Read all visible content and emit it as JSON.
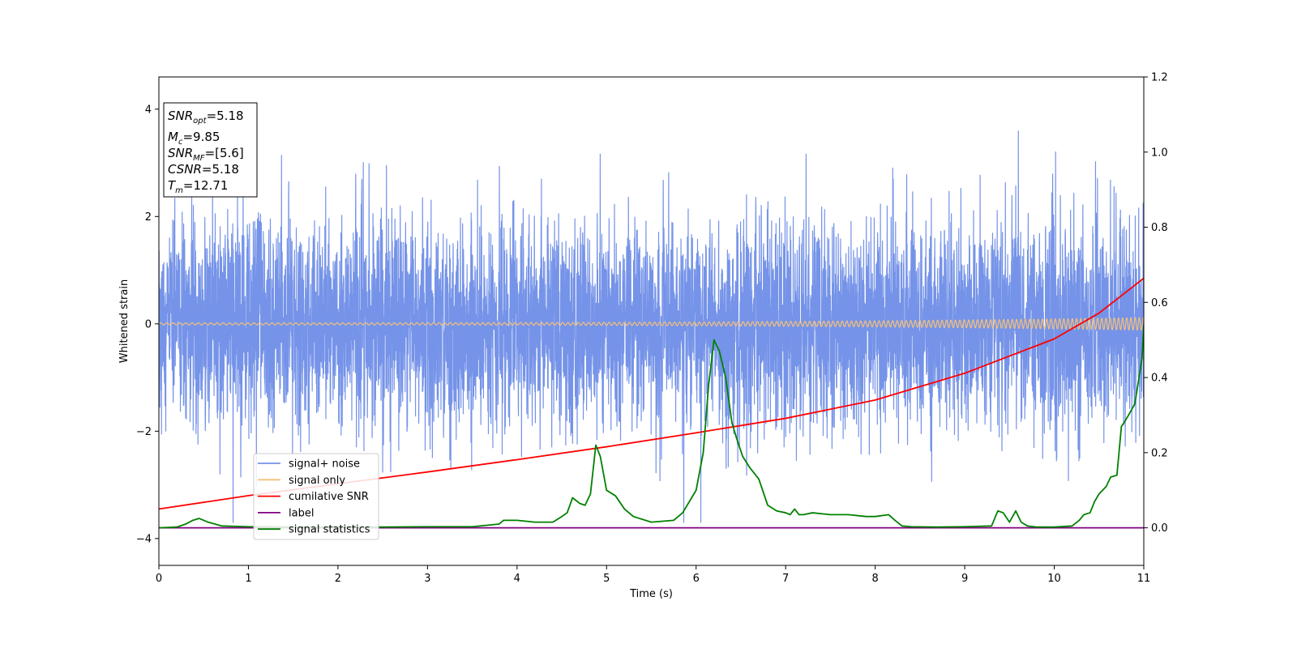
{
  "chart_data": {
    "type": "line",
    "title": "",
    "xlabel": "Time (s)",
    "ylabel": "Whitened strain",
    "xlim": [
      0,
      11
    ],
    "ylim": [
      -4.5,
      4.6
    ],
    "y2lim": [
      -0.1,
      1.2
    ],
    "xticks": [
      "0",
      "1",
      "2",
      "3",
      "4",
      "5",
      "6",
      "7",
      "8",
      "9",
      "10",
      "11"
    ],
    "yticks": [
      "−4",
      "−2",
      "0",
      "2",
      "4"
    ],
    "y2ticks": [
      "0.0",
      "0.2",
      "0.4",
      "0.6",
      "0.8",
      "1.0",
      "1.2"
    ],
    "grid": false,
    "legend_position": "lower-left",
    "stats_box": [
      {
        "name": "SNR",
        "sub": "opt",
        "value": "=5.18"
      },
      {
        "name": "M",
        "sub": "c",
        "value": "=9.85"
      },
      {
        "name": "SNR",
        "sub": "MF",
        "value": "=[5.6]"
      },
      {
        "name": "CSNR",
        "sub": "",
        "value": "=5.18"
      },
      {
        "name": "T",
        "sub": "m",
        "value": "=12.71"
      }
    ],
    "series": [
      {
        "name": "signal+ noise",
        "color": "#7593e8",
        "axis": "left",
        "kind": "noise",
        "sigma": 0.95,
        "range": [
          -3.7,
          3.85
        ]
      },
      {
        "name": "signal only",
        "color": "#f5c07a",
        "axis": "left",
        "kind": "chirp",
        "amplitude_start": 0.02,
        "amplitude_end": 0.12
      },
      {
        "name": "cumilative SNR",
        "color": "#ff0000",
        "axis": "left",
        "x": [
          0,
          1,
          2,
          3,
          4,
          5,
          6,
          7,
          8,
          9,
          10,
          10.5,
          11
        ],
        "y": [
          -3.45,
          -3.2,
          -2.98,
          -2.76,
          -2.53,
          -2.29,
          -2.03,
          -1.76,
          -1.42,
          -0.92,
          -0.28,
          0.2,
          0.85
        ]
      },
      {
        "name": "label",
        "color": "#800080",
        "axis": "right",
        "x": [
          0,
          11
        ],
        "y": [
          0.0,
          0.0
        ]
      },
      {
        "name": "signal statistics",
        "color": "#008000",
        "axis": "right",
        "x": [
          0,
          0.2,
          0.3,
          0.38,
          0.45,
          0.55,
          0.7,
          1.0,
          1.5,
          2.0,
          2.5,
          3.0,
          3.5,
          3.8,
          3.85,
          3.9,
          4.0,
          4.2,
          4.4,
          4.5,
          4.56,
          4.62,
          4.7,
          4.76,
          4.82,
          4.88,
          4.93,
          5.0,
          5.1,
          5.2,
          5.3,
          5.5,
          5.75,
          5.85,
          5.95,
          6.0,
          6.08,
          6.14,
          6.2,
          6.26,
          6.33,
          6.4,
          6.45,
          6.52,
          6.6,
          6.7,
          6.8,
          6.9,
          7.0,
          7.05,
          7.1,
          7.15,
          7.2,
          7.3,
          7.5,
          7.7,
          7.9,
          8.0,
          8.15,
          8.22,
          8.3,
          8.4,
          8.7,
          9.0,
          9.3,
          9.37,
          9.43,
          9.5,
          9.57,
          9.63,
          9.7,
          9.8,
          10.0,
          10.2,
          10.28,
          10.33,
          10.4,
          10.45,
          10.5,
          10.58,
          10.63,
          10.7,
          10.75,
          10.78,
          10.83,
          10.9,
          10.98,
          11.0
        ],
        "y": [
          0.0,
          0.002,
          0.01,
          0.02,
          0.025,
          0.015,
          0.005,
          0.003,
          0.002,
          0.002,
          0.002,
          0.003,
          0.003,
          0.01,
          0.02,
          0.02,
          0.02,
          0.015,
          0.015,
          0.03,
          0.04,
          0.08,
          0.065,
          0.06,
          0.09,
          0.22,
          0.19,
          0.1,
          0.085,
          0.05,
          0.03,
          0.015,
          0.02,
          0.04,
          0.08,
          0.1,
          0.2,
          0.38,
          0.5,
          0.47,
          0.4,
          0.28,
          0.24,
          0.19,
          0.16,
          0.13,
          0.06,
          0.045,
          0.04,
          0.035,
          0.05,
          0.035,
          0.035,
          0.04,
          0.035,
          0.035,
          0.03,
          0.03,
          0.035,
          0.02,
          0.005,
          0.003,
          0.002,
          0.003,
          0.005,
          0.045,
          0.04,
          0.015,
          0.045,
          0.015,
          0.005,
          0.002,
          0.002,
          0.005,
          0.02,
          0.035,
          0.04,
          0.07,
          0.09,
          0.11,
          0.135,
          0.14,
          0.27,
          0.28,
          0.3,
          0.33,
          0.45,
          0.54
        ]
      }
    ]
  }
}
